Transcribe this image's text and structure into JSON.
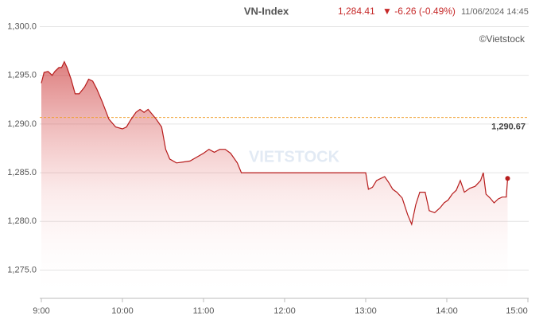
{
  "chart_data": {
    "type": "line",
    "header": {
      "title": "VN-Index",
      "price": "1,284.41",
      "change": "▼ -6.26 (-0.49%)",
      "date": "11/06/2024 14:45"
    },
    "credit": "©Vietstock",
    "watermark": "VIETSTOCK",
    "x": [
      "9:00",
      "9:02",
      "9:05",
      "9:08",
      "9:10",
      "9:13",
      "9:15",
      "9:17",
      "9:19",
      "9:22",
      "9:25",
      "9:28",
      "9:32",
      "9:35",
      "9:38",
      "9:41",
      "9:45",
      "9:50",
      "9:55",
      "10:00",
      "10:03",
      "10:06",
      "10:10",
      "10:13",
      "10:16",
      "10:19",
      "10:22",
      "10:25",
      "10:29",
      "10:32",
      "10:35",
      "10:40",
      "10:45",
      "10:50",
      "10:55",
      "11:00",
      "11:04",
      "11:08",
      "11:12",
      "11:16",
      "11:20",
      "11:25",
      "11:28",
      "11:30",
      "13:00",
      "13:02",
      "13:05",
      "13:08",
      "13:11",
      "13:14",
      "13:17",
      "13:20",
      "13:23",
      "13:27",
      "13:31",
      "13:34",
      "13:37",
      "13:40",
      "13:44",
      "13:47",
      "13:51",
      "13:55",
      "13:58",
      "14:01",
      "14:04",
      "14:07",
      "14:10",
      "14:13",
      "14:17",
      "14:21",
      "14:25",
      "14:27",
      "14:29",
      "14:32",
      "14:35",
      "14:38",
      "14:41",
      "14:44",
      "14:45"
    ],
    "series": [
      {
        "name": "VN-Index",
        "color": "#b71c1c",
        "values": [
          1294.2,
          1295.3,
          1295.4,
          1295.0,
          1295.4,
          1295.8,
          1295.8,
          1296.4,
          1295.8,
          1294.6,
          1293.1,
          1293.1,
          1293.8,
          1294.6,
          1294.4,
          1293.6,
          1292.3,
          1290.5,
          1289.7,
          1289.5,
          1289.7,
          1290.4,
          1291.2,
          1291.5,
          1291.2,
          1291.5,
          1291.0,
          1290.5,
          1289.7,
          1287.4,
          1286.4,
          1286.0,
          1286.1,
          1286.2,
          1286.6,
          1287.0,
          1287.4,
          1287.1,
          1287.4,
          1287.4,
          1287.0,
          1286.0,
          1285.0,
          1285.0,
          1285.0,
          1283.3,
          1283.5,
          1284.2,
          1284.4,
          1284.6,
          1284.0,
          1283.3,
          1283.0,
          1282.4,
          1280.7,
          1279.7,
          1281.7,
          1283.0,
          1283.0,
          1281.1,
          1280.9,
          1281.4,
          1281.9,
          1282.2,
          1282.8,
          1283.2,
          1284.2,
          1283.0,
          1283.4,
          1283.6,
          1284.2,
          1285.0,
          1282.8,
          1282.4,
          1281.9,
          1282.3,
          1282.5,
          1282.5,
          1284.41
        ]
      }
    ],
    "reference": {
      "value": 1290.67,
      "label": "1,290.67",
      "color": "#f0a030"
    },
    "xlim": [
      "9:00",
      "15:00"
    ],
    "xticks": [
      "9:00",
      "10:00",
      "11:00",
      "12:00",
      "13:00",
      "14:00",
      "15:00"
    ],
    "ylim": [
      1272.1,
      1301.1
    ],
    "yticks": [
      {
        "value": 1275,
        "label": "1,275.0"
      },
      {
        "value": 1280,
        "label": "1,280.0"
      },
      {
        "value": 1285,
        "label": "1,285.0"
      },
      {
        "value": 1290,
        "label": "1,290.0"
      },
      {
        "value": 1295,
        "label": "1,295.0"
      },
      {
        "value": 1300,
        "label": "1,300.0"
      }
    ],
    "grid": true
  }
}
